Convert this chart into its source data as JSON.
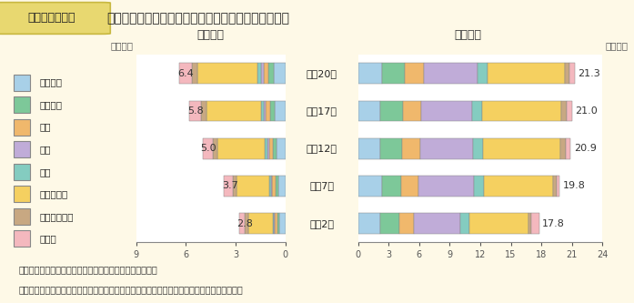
{
  "title_box": "第１－７－９図",
  "title_text": "専攻分野別にみた大学等の研究本務者の推移（性別）",
  "years": [
    "平成2年",
    "平成7年",
    "平成12年",
    "平成17年",
    "平成20年"
  ],
  "female_totals": [
    2.8,
    3.7,
    5.0,
    5.8,
    6.4
  ],
  "male_totals": [
    17.8,
    19.8,
    20.9,
    21.0,
    21.3
  ],
  "categories": [
    "人文科学",
    "社会科学",
    "理学",
    "工学",
    "農学",
    "医学・歯学",
    "その他の保健",
    "その他"
  ],
  "colors": [
    "#a8d0e8",
    "#7dc899",
    "#f0b86c",
    "#c0acd8",
    "#84ccc0",
    "#f5d060",
    "#c8a882",
    "#f4b8be"
  ],
  "female_data": [
    [
      0.35,
      0.15,
      0.12,
      0.05,
      0.08,
      1.5,
      0.18,
      0.37
    ],
    [
      0.42,
      0.18,
      0.18,
      0.07,
      0.1,
      2.0,
      0.22,
      0.53
    ],
    [
      0.55,
      0.22,
      0.22,
      0.1,
      0.14,
      2.85,
      0.28,
      0.64
    ],
    [
      0.65,
      0.27,
      0.27,
      0.12,
      0.17,
      3.3,
      0.32,
      0.7
    ],
    [
      0.72,
      0.3,
      0.3,
      0.14,
      0.2,
      3.65,
      0.35,
      0.74
    ]
  ],
  "male_data": [
    [
      2.2,
      1.8,
      1.5,
      4.5,
      0.9,
      5.8,
      0.35,
      0.75
    ],
    [
      2.3,
      1.9,
      1.7,
      5.5,
      1.0,
      6.8,
      0.35,
      0.25
    ],
    [
      2.2,
      2.1,
      1.8,
      5.2,
      1.0,
      7.6,
      0.5,
      0.5
    ],
    [
      2.2,
      2.2,
      1.8,
      5.0,
      1.0,
      7.8,
      0.5,
      0.5
    ],
    [
      2.3,
      2.3,
      1.9,
      5.2,
      1.0,
      7.6,
      0.5,
      0.5
    ]
  ],
  "background_color": "#fef9e7",
  "header_bg": "#e8d870",
  "header_border": "#c8b840",
  "note1": "（備考）１．総務省「科学技術研究調査報告」より作成。",
  "note2": "　　　　２．大学等：大学、短大、高等専門学校、大学附属研究所、大学共同利用機関など。"
}
